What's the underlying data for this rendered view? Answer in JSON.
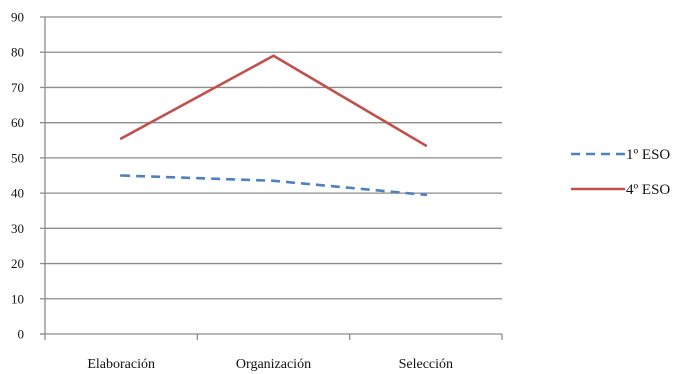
{
  "chart_data": {
    "type": "line",
    "categories": [
      "Elaboración",
      "Organización",
      "Selección"
    ],
    "ylim": [
      0,
      90
    ],
    "yticks": [
      0,
      10,
      20,
      30,
      40,
      50,
      60,
      70,
      80,
      90
    ],
    "grid": true,
    "legend_position": "right",
    "series": [
      {
        "name": "1º ESO",
        "values": [
          45,
          43.5,
          39.5
        ],
        "color": "#4f81bd",
        "style": "dashed"
      },
      {
        "name": "4º ESO",
        "values": [
          55.5,
          79,
          53.5
        ],
        "color": "#c0504d",
        "style": "solid"
      }
    ]
  }
}
